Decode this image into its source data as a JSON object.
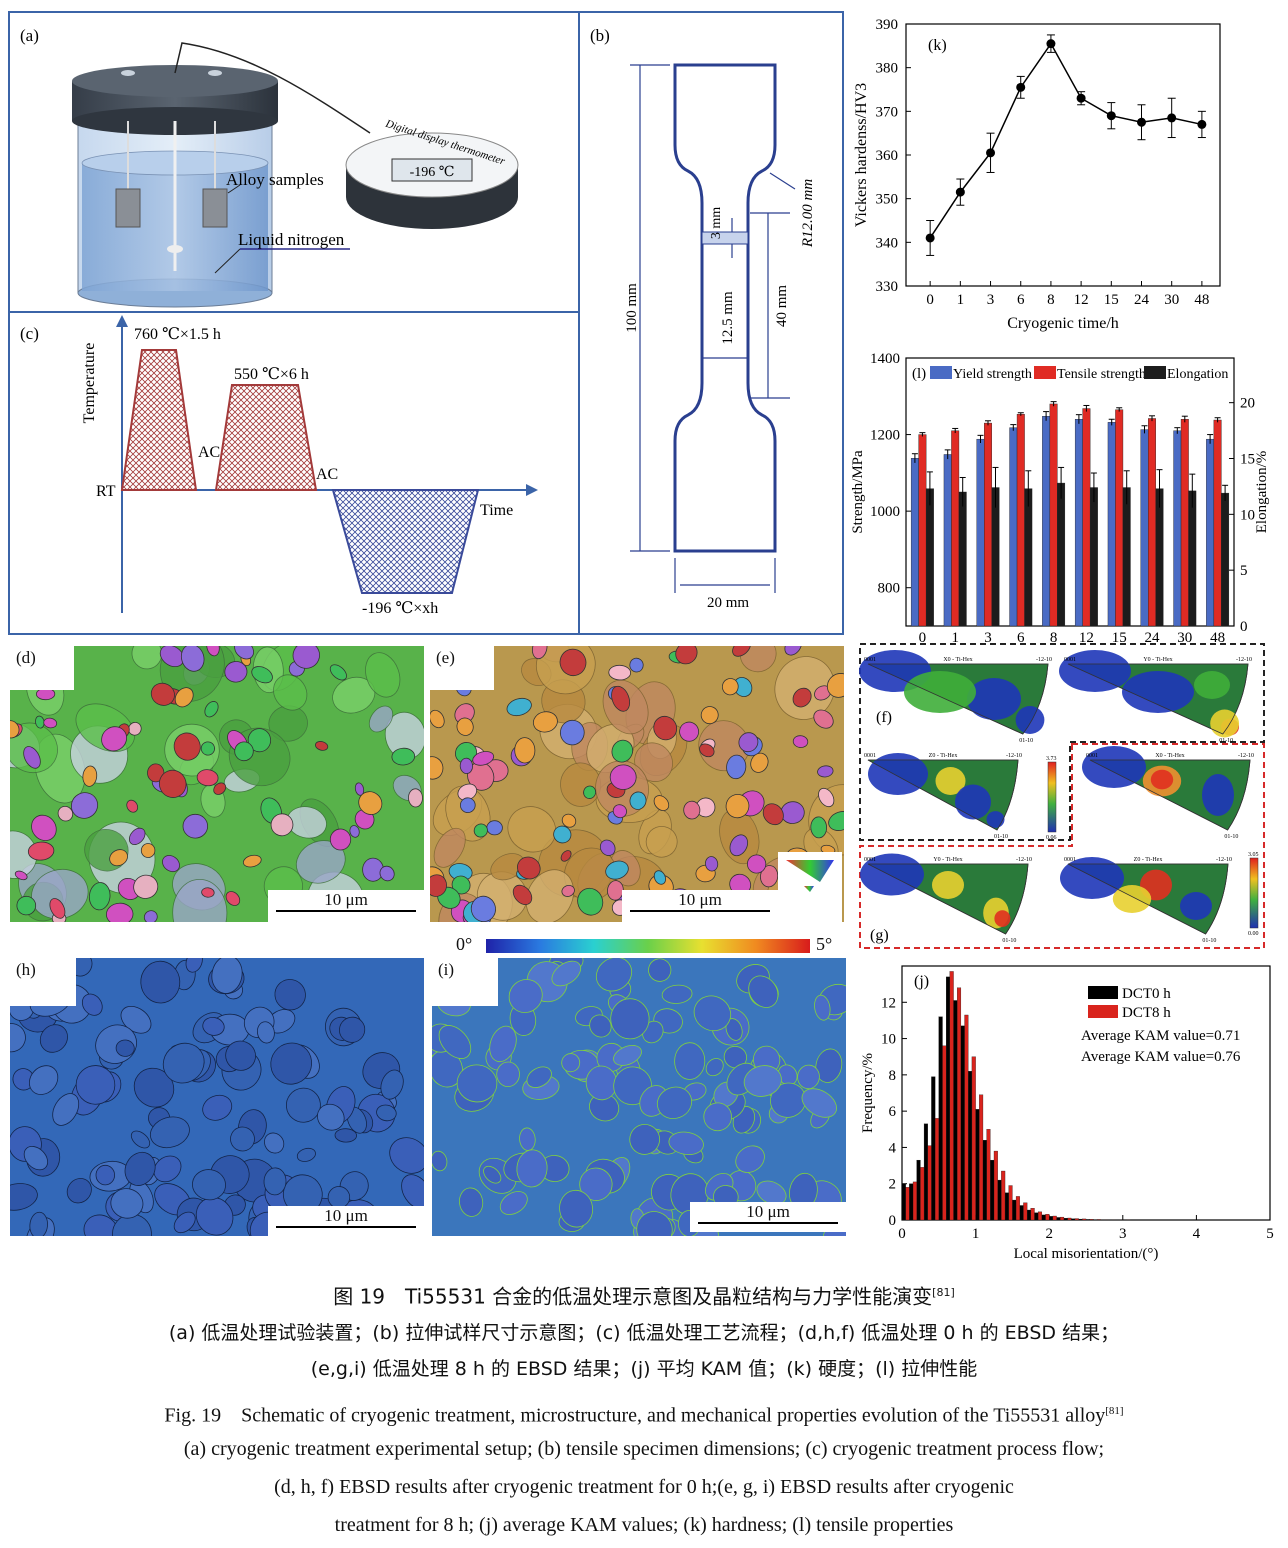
{
  "panels": {
    "a": {
      "label": "(a)",
      "thermometer_title": "Digital display thermometer",
      "temp": "-196 ℃",
      "samples": "Alloy samples",
      "nitrogen": "Liquid nitrogen"
    },
    "b": {
      "label": "(b)",
      "dims": {
        "total": "100 mm",
        "gauge": "40 mm",
        "gauge_width": "12.5 mm",
        "width": "20 mm",
        "notch": "3 mm",
        "radius": "R12.00 mm"
      }
    },
    "c": {
      "label": "(c)",
      "ylabel": "Temperature",
      "xlabel": "Time",
      "rt": "RT",
      "ac1": "AC",
      "ac2": "AC",
      "step1": "760 ℃×1.5 h",
      "step2": "550 ℃×6 h",
      "step3": "-196 ℃×xh"
    },
    "d": {
      "label": "(d)",
      "scale": "10 μm"
    },
    "e": {
      "label": "(e)",
      "scale": "10 μm"
    },
    "f": {
      "label": "(f)",
      "ipf_titles": [
        "X0 - Ti-Hex",
        "Y0 - Ti-Hex",
        "Z0 - Ti-Hex"
      ],
      "max": "3.73",
      "min": "0.06"
    },
    "g": {
      "label": "(g)",
      "ipf_titles": [
        "X0 - Ti-Hex",
        "Y0 - Ti-Hex",
        "Z0 - Ti-Hex"
      ],
      "max": "3.05",
      "min": "0.00"
    },
    "h": {
      "label": "(h)",
      "scale": "10 μm"
    },
    "i": {
      "label": "(i)",
      "scale": "10 μm"
    },
    "kam_scale": {
      "min": "0°",
      "max": "5°"
    },
    "ipf_corner": {
      "a": "0001",
      "b": "-12-10",
      "c": "01-10"
    }
  },
  "chart_data": [
    {
      "id": "k",
      "type": "line",
      "label": "(k)",
      "categories": [
        "0",
        "1",
        "3",
        "6",
        "8",
        "12",
        "15",
        "24",
        "30",
        "48"
      ],
      "values": [
        341,
        351.5,
        360.5,
        375.5,
        385.5,
        373,
        369,
        367.5,
        368.5,
        367
      ],
      "errors": [
        4,
        3,
        4.5,
        2.5,
        2,
        1.5,
        3,
        4,
        4.5,
        3
      ],
      "xlabel": "Cryogenic time/h",
      "ylabel": "Vickers hardenss/HV3",
      "ylim": [
        330,
        390
      ],
      "yticks": [
        330,
        340,
        350,
        360,
        370,
        380,
        390
      ]
    },
    {
      "id": "l",
      "type": "bar",
      "label": "(l)",
      "categories": [
        "0",
        "1",
        "3",
        "6",
        "8",
        "12",
        "15",
        "24",
        "30",
        "48"
      ],
      "ylabel": "Strength/MPa",
      "y2label": "Elongation/%",
      "ylim": [
        700,
        1400
      ],
      "yticks": [
        800,
        1000,
        1200,
        1400
      ],
      "y2lim": [
        0,
        24
      ],
      "y2ticks": [
        0,
        5,
        10,
        15,
        20
      ],
      "series": [
        {
          "name": "Yield strength",
          "axis": "left",
          "color": "#4a6bc4",
          "values": [
            1138,
            1148,
            1188,
            1218,
            1248,
            1240,
            1232,
            1213,
            1210,
            1188
          ],
          "errors": [
            12,
            12,
            10,
            8,
            12,
            12,
            8,
            10,
            8,
            12
          ]
        },
        {
          "name": "Tensile strength",
          "axis": "left",
          "color": "#e02b24",
          "values": [
            1200,
            1210,
            1230,
            1253,
            1280,
            1268,
            1265,
            1242,
            1240,
            1238
          ],
          "errors": [
            5,
            6,
            6,
            4,
            6,
            8,
            5,
            7,
            8,
            6
          ]
        },
        {
          "name": "Elongation",
          "axis": "right",
          "color": "#1c1c1c",
          "values": [
            12.3,
            12.0,
            12.4,
            12.3,
            12.8,
            12.4,
            12.4,
            12.3,
            12.1,
            11.9
          ],
          "errors": [
            1.5,
            1.3,
            1.8,
            1.6,
            1.4,
            1.3,
            1.5,
            1.7,
            1.5,
            0.7
          ]
        }
      ]
    },
    {
      "id": "j",
      "type": "bar",
      "label": "(j)",
      "xlabel": "Local misorientation/(°)",
      "ylabel": "Frequency/%",
      "xlim": [
        0,
        5
      ],
      "xticks": [
        0,
        1,
        2,
        3,
        4,
        5
      ],
      "ylim": [
        0,
        14
      ],
      "yticks": [
        0,
        2,
        4,
        6,
        8,
        10,
        12
      ],
      "series": [
        {
          "name": "DCT0 h",
          "color": "#000000",
          "x": [
            0,
            0.1,
            0.2,
            0.3,
            0.4,
            0.5,
            0.6,
            0.7,
            0.8,
            0.9,
            1.0,
            1.1,
            1.2,
            1.3,
            1.4,
            1.5,
            1.6,
            1.7,
            1.8,
            1.9,
            2.0,
            2.1,
            2.2,
            2.3,
            2.4,
            2.5,
            2.6,
            2.7,
            2.8,
            2.9,
            3.0
          ],
          "values": [
            2.0,
            2.0,
            3.3,
            5.3,
            7.9,
            11.2,
            13.4,
            12.1,
            10.7,
            8.2,
            6.1,
            4.4,
            3.3,
            2.2,
            1.5,
            1.1,
            0.8,
            0.55,
            0.4,
            0.28,
            0.2,
            0.14,
            0.1,
            0.07,
            0.05,
            0.03,
            0.02,
            0.015,
            0.01,
            0.01,
            0.005
          ]
        },
        {
          "name": "DCT8 h",
          "color": "#d9241d",
          "x": [
            0.05,
            0.15,
            0.25,
            0.35,
            0.45,
            0.55,
            0.65,
            0.75,
            0.85,
            0.95,
            1.05,
            1.15,
            1.25,
            1.35,
            1.45,
            1.55,
            1.65,
            1.75,
            1.85,
            1.95,
            2.05,
            2.15,
            2.25,
            2.35,
            2.45,
            2.55,
            2.65,
            2.75,
            2.85,
            2.95,
            3.05
          ],
          "values": [
            1.8,
            2.1,
            2.9,
            4.1,
            5.6,
            9.6,
            13.7,
            12.8,
            11.3,
            9.0,
            6.9,
            5.0,
            3.8,
            2.7,
            1.9,
            1.3,
            0.95,
            0.65,
            0.45,
            0.32,
            0.22,
            0.16,
            0.11,
            0.08,
            0.06,
            0.04,
            0.03,
            0.02,
            0.015,
            0.01,
            0.005
          ]
        }
      ],
      "annotations": [
        "Average KAM value=0.71",
        "Average KAM value=0.76"
      ]
    }
  ],
  "caption": {
    "cn_title": "图 19　Ti55531 合金的低温处理示意图及晶粒结构与力学性能演变",
    "cn_ref": "[81]",
    "cn_line1": "(a) 低温处理试验装置；(b) 拉伸试样尺寸示意图；(c) 低温处理工艺流程；(d,h,f) 低温处理 0 h 的 EBSD 结果；",
    "cn_line2": "(e,g,i) 低温处理 8 h 的 EBSD 结果；(j) 平均 KAM 值；(k) 硬度；(l) 拉伸性能",
    "en_title": "Fig. 19　Schematic of cryogenic treatment, microstructure, and mechanical properties evolution of the Ti55531 alloy",
    "en_ref": "[81]",
    "en_line1": "(a) cryogenic treatment experimental setup; (b) tensile specimen dimensions; (c) cryogenic treatment process flow;",
    "en_line2": "(d, h, f) EBSD results after cryogenic treatment for 0 h;(e, g, i) EBSD results after cryogenic",
    "en_line3": "treatment for 8 h; (j) average KAM values; (k) hardness; (l) tensile properties"
  },
  "colors": {
    "frame": "#3b64a8",
    "yield": "#4a6bc4",
    "tensile": "#e02b24",
    "elong": "#1c1c1c",
    "dct0": "#000000",
    "dct8": "#d9241d"
  }
}
